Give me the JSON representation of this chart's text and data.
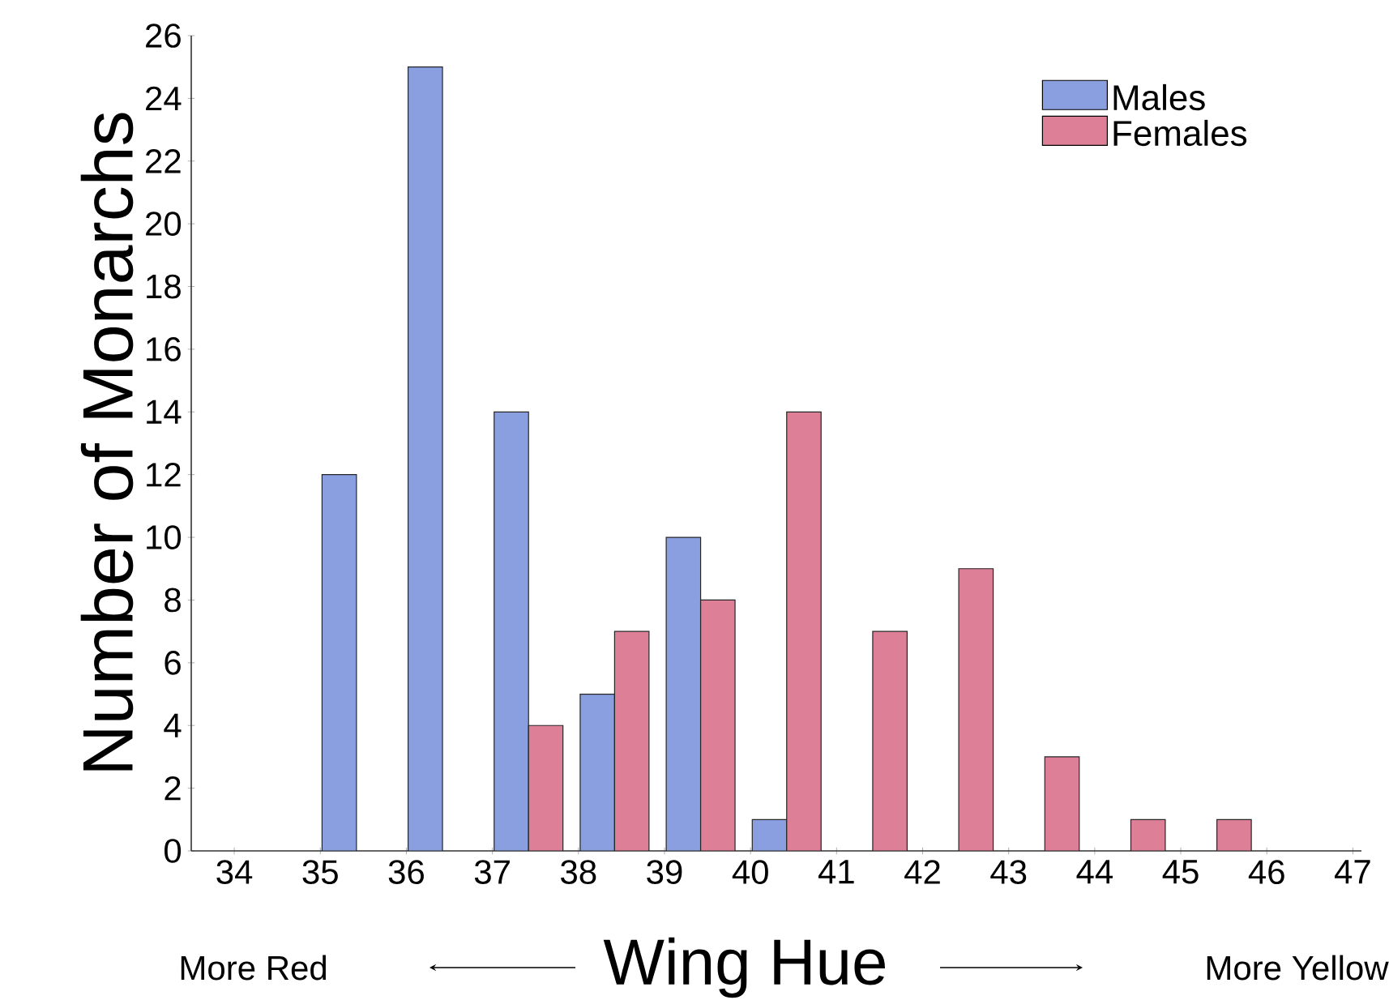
{
  "chart_data": {
    "type": "bar",
    "xlabel": "Wing Hue",
    "ylabel": "Number of Monarchs",
    "series": [
      {
        "name": "Males",
        "color": "#8a9fdf",
        "x": [
          35.22,
          36.22,
          37.22,
          38.22,
          39.22,
          40.22
        ],
        "values": [
          12,
          25,
          14,
          5,
          10,
          1
        ]
      },
      {
        "name": "Females",
        "color": "#dc7f97",
        "x": [
          37.62,
          38.62,
          39.62,
          40.62,
          41.62,
          42.62,
          43.62,
          44.62,
          45.62
        ],
        "values": [
          4,
          7,
          8,
          14,
          7,
          9,
          3,
          1,
          1
        ]
      }
    ],
    "xlim": [
      33.5,
      47.1
    ],
    "xticks": [
      34,
      35,
      36,
      37,
      38,
      39,
      40,
      41,
      42,
      43,
      44,
      45,
      46,
      47
    ],
    "ylim": [
      0,
      26
    ],
    "yticks": [
      0,
      2,
      4,
      6,
      8,
      10,
      12,
      14,
      16,
      18,
      20,
      22,
      24,
      26
    ],
    "legend": "top right",
    "grid": false,
    "annotations": [
      "More Red",
      "More Yellow"
    ]
  }
}
